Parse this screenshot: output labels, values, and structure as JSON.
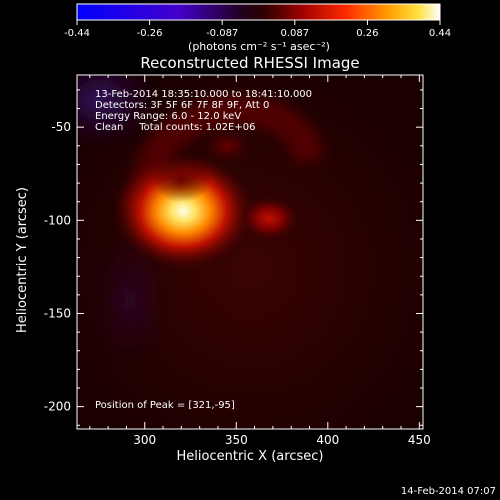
{
  "chart_data": {
    "type": "heatmap",
    "title": "Reconstructed RHESSI Image",
    "xlabel": "Heliocentric X (arcsec)",
    "ylabel": "Heliocentric Y (arcsec)",
    "xlim": [
      263,
      452
    ],
    "ylim": [
      -212,
      -22
    ],
    "x_ticks": [
      300,
      350,
      400,
      450
    ],
    "y_ticks": [
      -50,
      -100,
      -150,
      -200
    ],
    "colorbar": {
      "colormap": "blue-white-red-yellow (IDL color table 5)",
      "range": [
        -0.44,
        0.44
      ],
      "tick_labels": [
        "-0.44",
        "-0.26",
        "-0.087",
        "0.087",
        "0.26",
        "0.44"
      ],
      "unit_label": "(photons cm⁻² s⁻¹ asec⁻²)"
    },
    "annotations": {
      "time": "13-Feb-2014 18:35:10.000 to 18:41:10.000",
      "detectors": "Detectors: 3F 5F 6F 7F 8F 9F, Att 0",
      "energy": "Energy Range: 6.0 - 12.0 keV",
      "method": "Clean     Total counts: 1.02E+06",
      "peak": "Position of Peak = [321,-95]"
    },
    "sources": [
      {
        "x": 321,
        "y": -95,
        "intensity": 0.44
      },
      {
        "x": 368,
        "y": -99,
        "intensity": 0.1
      },
      {
        "x": 320,
        "y": -78,
        "intensity": 0.07
      },
      {
        "x": 345,
        "y": -60,
        "intensity": 0.05
      }
    ],
    "colors": {
      "peak": "#ffffe0",
      "mid": "#ff4000",
      "low": "#600000",
      "negative": "#3a1a78"
    }
  },
  "footer": {
    "timestamp": "14-Feb-2014 07:07"
  }
}
